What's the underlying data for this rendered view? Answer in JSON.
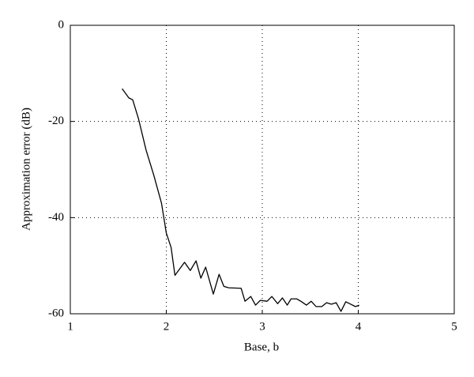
{
  "chart_data": {
    "type": "line",
    "xlabel": "Base, b",
    "ylabel": "Approximation error (dB)",
    "x": [
      1.54,
      1.61,
      1.65,
      1.71,
      1.79,
      1.87,
      1.95,
      2.0,
      2.05,
      2.09,
      2.19,
      2.25,
      2.31,
      2.36,
      2.41,
      2.49,
      2.55,
      2.6,
      2.65,
      2.78,
      2.82,
      2.88,
      2.93,
      2.98,
      3.05,
      3.1,
      3.16,
      3.21,
      3.26,
      3.3,
      3.36,
      3.41,
      3.46,
      3.51,
      3.56,
      3.62,
      3.67,
      3.72,
      3.77,
      3.82,
      3.87,
      3.92,
      3.97,
      4.01
    ],
    "values": [
      -13.2,
      -15.1,
      -15.5,
      -19.4,
      -26,
      -31.2,
      -37,
      -43.2,
      -46.2,
      -52,
      -49.3,
      -51,
      -49,
      -52.6,
      -50.3,
      -55.9,
      -51.8,
      -54.3,
      -54.6,
      -54.7,
      -57.4,
      -56.4,
      -58.2,
      -57.2,
      -57.4,
      -56.4,
      -57.9,
      -56.7,
      -58.2,
      -56.9,
      -56.9,
      -57.5,
      -58.2,
      -57.4,
      -58.5,
      -58.5,
      -57.7,
      -58,
      -57.7,
      -59.5,
      -57.5,
      -58,
      -58.5,
      -58.2
    ],
    "color": "#000000",
    "xlim": [
      1,
      5
    ],
    "xticks": [
      1,
      2,
      3,
      4,
      5
    ],
    "ylim": [
      -60,
      0
    ],
    "yticks": [
      -60,
      -40,
      -20,
      0
    ],
    "grid": true
  }
}
